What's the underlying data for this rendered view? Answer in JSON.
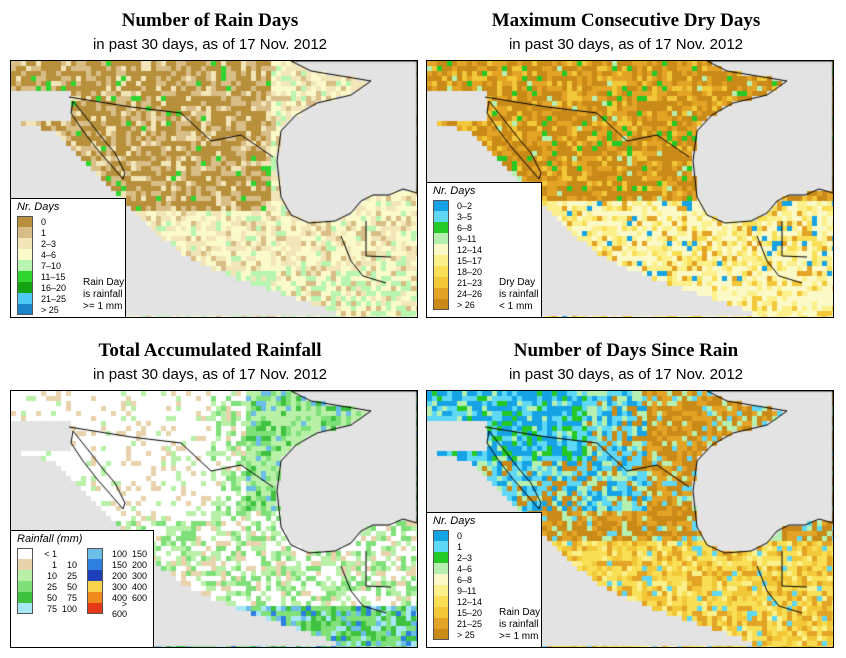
{
  "panels": [
    {
      "title": "Number of Rain Days",
      "subtitle": "in past 30 days, as of  17 Nov. 2012",
      "legend_title": "Nr. Days",
      "legend": [
        {
          "label": "0",
          "color": "#b8903c"
        },
        {
          "label": "1",
          "color": "#d9bd86"
        },
        {
          "label": "2–3",
          "color": "#f2e6b8"
        },
        {
          "label": "4–6",
          "color": "#fbfacb"
        },
        {
          "label": "7–10",
          "color": "#b8f5b0"
        },
        {
          "label": "11–15",
          "color": "#30d530"
        },
        {
          "label": "16–20",
          "color": "#13a313"
        },
        {
          "label": "21–25",
          "color": "#4ec8f5"
        },
        {
          "label": "> 25",
          "color": "#1c84c8"
        }
      ],
      "note": [
        "Rain Day",
        "is rainfall",
        ">= 1 mm"
      ]
    },
    {
      "title": "Maximum Consecutive Dry Days",
      "subtitle": "in past 30 days, as of  17 Nov. 2012",
      "legend_title": "Nr. Days",
      "legend": [
        {
          "label": "0–2",
          "color": "#15a3e6"
        },
        {
          "label": "3–5",
          "color": "#5ed8f5"
        },
        {
          "label": "6–8",
          "color": "#25c925"
        },
        {
          "label": "9–11",
          "color": "#b5f0b0"
        },
        {
          "label": "12–14",
          "color": "#fbf9c8"
        },
        {
          "label": "15–17",
          "color": "#fbf08c"
        },
        {
          "label": "18–20",
          "color": "#f8df55"
        },
        {
          "label": "21–23",
          "color": "#f2c838"
        },
        {
          "label": "24–26",
          "color": "#e3a325"
        },
        {
          "label": "> 26",
          "color": "#c98a18"
        }
      ],
      "note": [
        "Dry Day",
        "is rainfall",
        "< 1 mm"
      ]
    },
    {
      "title": "Total Accumulated Rainfall",
      "subtitle": "in past 30 days, as of  17 Nov. 2012",
      "legend_title": "Rainfall (mm)",
      "legend_left": [
        {
          "from": "< 1",
          "to": "",
          "color": "#ffffff"
        },
        {
          "from": "1",
          "to": "10",
          "color": "#e8d3ac"
        },
        {
          "from": "10",
          "to": "25",
          "color": "#b8f0a8"
        },
        {
          "from": "25",
          "to": "50",
          "color": "#7fe07a"
        },
        {
          "from": "50",
          "to": "75",
          "color": "#3fc23f"
        },
        {
          "from": "75",
          "to": "100",
          "color": "#a8e8f5"
        }
      ],
      "legend_right": [
        {
          "from": "100",
          "to": "150",
          "color": "#6cbde8"
        },
        {
          "from": "150",
          "to": "200",
          "color": "#2d7fe0"
        },
        {
          "from": "200",
          "to": "300",
          "color": "#1d3fb8"
        },
        {
          "from": "300",
          "to": "400",
          "color": "#f8d24a"
        },
        {
          "from": "400",
          "to": "600",
          "color": "#f08a1e"
        },
        {
          "from": "> 600",
          "to": "",
          "color": "#e53a18"
        }
      ]
    },
    {
      "title": "Number of Days Since Rain",
      "subtitle": "in past 30 days, as of  17 Nov. 2012",
      "legend_title": "Nr. Days",
      "legend": [
        {
          "label": "0",
          "color": "#15a3e6"
        },
        {
          "label": "1",
          "color": "#5ed8f5"
        },
        {
          "label": "2–3",
          "color": "#25c925"
        },
        {
          "label": "4–6",
          "color": "#b5f0b0"
        },
        {
          "label": "6–8",
          "color": "#fbf9c8"
        },
        {
          "label": "9–11",
          "color": "#fbf08c"
        },
        {
          "label": "12–14",
          "color": "#f8df55"
        },
        {
          "label": "15–20",
          "color": "#f2c838"
        },
        {
          "label": "21–25",
          "color": "#e3a325"
        },
        {
          "label": "> 25",
          "color": "#c98a18"
        }
      ],
      "note": [
        "Rain Day",
        "is rainfall",
        ">= 1 mm"
      ]
    }
  ]
}
